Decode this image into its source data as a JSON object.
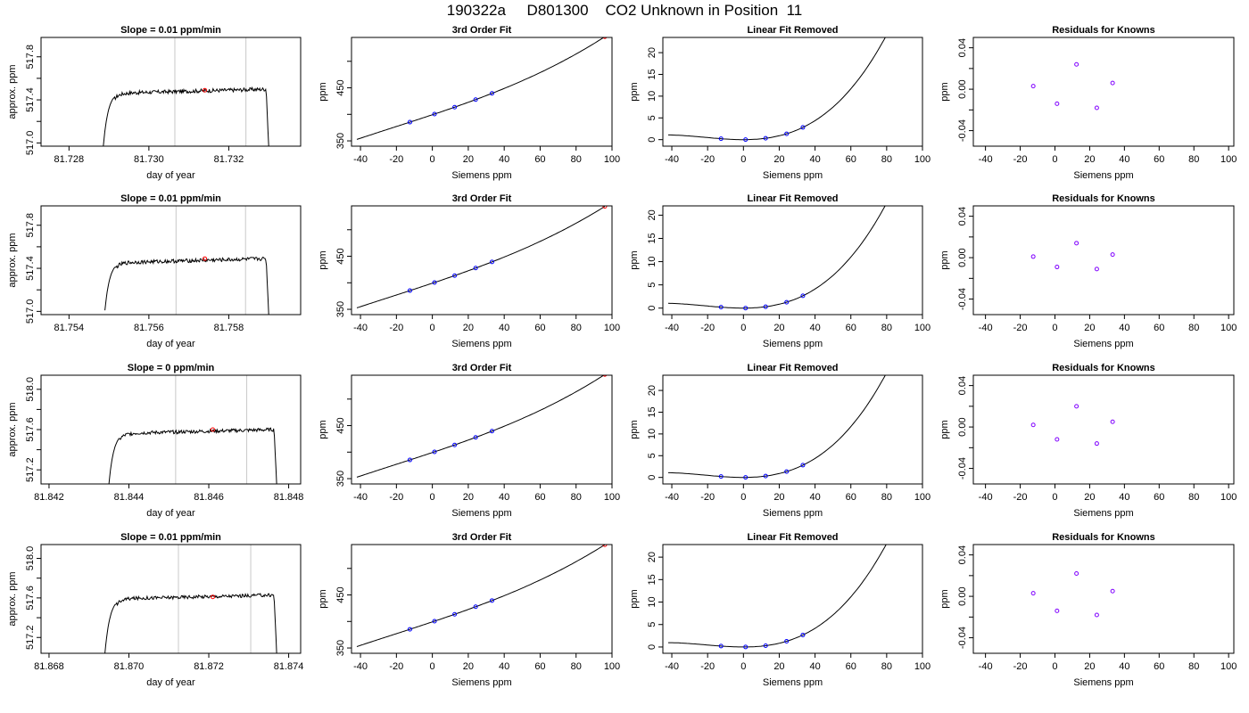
{
  "page_title": "190322a     D801300    CO2 Unknown in Position  11",
  "colors": {
    "axis": "#000000",
    "trace": "#000000",
    "marker_window": "#c8c8c8",
    "unknown_point": "#ff0000",
    "known_point": "#0000ff",
    "residual_point": "#8000ff"
  },
  "chart_data": [
    {
      "type": "line",
      "title": "Slope =  0.01  ppm/min",
      "xlabel": "day of year",
      "ylabel": "approx. ppm",
      "xlim": [
        81.7273,
        81.7338
      ],
      "ylim": [
        516.97,
        517.98
      ],
      "xticks": [
        "81.728",
        "81.730",
        "81.732"
      ],
      "xtick_values": [
        81.728,
        81.73,
        81.732
      ],
      "yticks": [
        "517.0",
        "517.4",
        "517.8"
      ],
      "ytick_values": [
        517.0,
        517.4,
        517.8
      ],
      "yminor_ticks": [
        517.2,
        517.6
      ],
      "window": [
        81.73065,
        81.73243
      ],
      "unknown_point": [
        81.7314,
        517.49
      ],
      "trace_x_range": [
        81.72886,
        81.733
      ],
      "plateau": 517.48,
      "trace_start": 516.97,
      "trace_end": 516.97
    },
    {
      "type": "scatter",
      "title": "3rd Order Fit",
      "xlabel": "Siemens ppm",
      "ylabel": "ppm",
      "xlim": [
        -45,
        100
      ],
      "ylim": [
        340,
        545
      ],
      "xticks": [
        "-40",
        "-20",
        "0",
        "20",
        "40",
        "60",
        "80",
        "100"
      ],
      "xtick_values": [
        -40,
        -20,
        0,
        20,
        40,
        60,
        80,
        100
      ],
      "yticks": [
        "350",
        "450"
      ],
      "ytick_values": [
        350,
        450
      ],
      "yminor_ticks": [
        400,
        500
      ],
      "curve": {
        "x0": -42,
        "x1": 96,
        "a": 399.2,
        "b": 1.131,
        "c": 0.0017,
        "d": 2.58e-05
      },
      "knowns_x": [
        -12.5,
        1.2,
        12.4,
        24.1,
        33.2
      ],
      "unknown_x": 96
    },
    {
      "type": "scatter",
      "title": "Linear Fit Removed",
      "xlabel": "Siemens ppm",
      "ylabel": "ppm",
      "xlim": [
        -45,
        100
      ],
      "ylim": [
        -1.5,
        23.5
      ],
      "xticks": [
        "-40",
        "-20",
        "0",
        "20",
        "40",
        "60",
        "80",
        "100"
      ],
      "xtick_values": [
        -40,
        -20,
        0,
        20,
        40,
        60,
        80,
        100
      ],
      "yticks": [
        "0",
        "5",
        "10",
        "15",
        "20"
      ],
      "ytick_values": [
        0,
        5,
        10,
        15,
        20
      ],
      "curve": {
        "x0": -42,
        "x1": 96,
        "a": 0.0,
        "b": 0.0,
        "c": 0.0017,
        "d": 2.58e-05
      },
      "knowns_x": [
        -12.5,
        1.2,
        12.4,
        24.1,
        33.2
      ],
      "unknown_x": 96
    },
    {
      "type": "scatter",
      "title": "Residuals for Knowns",
      "xlabel": "Siemens ppm",
      "ylabel": "ppm",
      "xlim": [
        -47,
        103
      ],
      "ylim": [
        -0.055,
        0.05
      ],
      "xticks": [
        "-40",
        "-20",
        "0",
        "20",
        "40",
        "60",
        "80",
        "100"
      ],
      "xtick_values": [
        -40,
        -20,
        0,
        20,
        40,
        60,
        80,
        100
      ],
      "yticks": [
        "-0.04",
        "0.00",
        "0.04"
      ],
      "ytick_values": [
        -0.04,
        0.0,
        0.04
      ],
      "yminor_ticks": [
        -0.02,
        0.02
      ],
      "points_x": [
        -12.5,
        1.2,
        12.4,
        24.1,
        33.2
      ],
      "points_y": [
        0.003,
        -0.014,
        0.024,
        -0.018,
        0.006
      ]
    },
    {
      "type": "line",
      "title": "Slope =  0.01  ppm/min",
      "xlabel": "day of year",
      "ylabel": "approx. ppm",
      "xlim": [
        81.7533,
        81.7598
      ],
      "ylim": [
        516.97,
        517.98
      ],
      "xticks": [
        "81.754",
        "81.756",
        "81.758"
      ],
      "xtick_values": [
        81.754,
        81.756,
        81.758
      ],
      "yticks": [
        "517.0",
        "517.4",
        "517.8"
      ],
      "ytick_values": [
        517.0,
        517.4,
        517.8
      ],
      "yminor_ticks": [
        517.2,
        517.6
      ],
      "window": [
        81.75668,
        81.75842
      ],
      "unknown_point": [
        81.7574,
        517.49
      ],
      "trace_x_range": [
        81.7549,
        81.759
      ],
      "plateau": 517.47,
      "trace_start": 517.01,
      "trace_end": 516.97
    },
    {
      "type": "scatter",
      "title": "3rd Order Fit",
      "xlabel": "Siemens ppm",
      "ylabel": "ppm",
      "xlim": [
        -45,
        100
      ],
      "ylim": [
        340,
        545
      ],
      "xticks": [
        "-40",
        "-20",
        "0",
        "20",
        "40",
        "60",
        "80",
        "100"
      ],
      "xtick_values": [
        -40,
        -20,
        0,
        20,
        40,
        60,
        80,
        100
      ],
      "yticks": [
        "350",
        "450"
      ],
      "ytick_values": [
        350,
        450
      ],
      "yminor_ticks": [
        400,
        500
      ],
      "curve": {
        "x0": -42,
        "x1": 96,
        "a": 399.2,
        "b": 1.131,
        "c": 0.0016,
        "d": 2.42e-05
      },
      "knowns_x": [
        -12.5,
        1.2,
        12.4,
        24.1,
        33.2
      ],
      "unknown_x": 96
    },
    {
      "type": "scatter",
      "title": "Linear Fit Removed",
      "xlabel": "Siemens ppm",
      "ylabel": "ppm",
      "xlim": [
        -45,
        100
      ],
      "ylim": [
        -1.4,
        22.0
      ],
      "xticks": [
        "-40",
        "-20",
        "0",
        "20",
        "40",
        "60",
        "80",
        "100"
      ],
      "xtick_values": [
        -40,
        -20,
        0,
        20,
        40,
        60,
        80,
        100
      ],
      "yticks": [
        "0",
        "5",
        "10",
        "15",
        "20"
      ],
      "ytick_values": [
        0,
        5,
        10,
        15,
        20
      ],
      "curve": {
        "x0": -42,
        "x1": 96,
        "a": 0.0,
        "b": 0.0,
        "c": 0.0016,
        "d": 2.42e-05
      },
      "knowns_x": [
        -12.5,
        1.2,
        12.4,
        24.1,
        33.2
      ],
      "unknown_x": 96
    },
    {
      "type": "scatter",
      "title": "Residuals for Knowns",
      "xlabel": "Siemens ppm",
      "ylabel": "ppm",
      "xlim": [
        -47,
        103
      ],
      "ylim": [
        -0.055,
        0.05
      ],
      "xticks": [
        "-40",
        "-20",
        "0",
        "20",
        "40",
        "60",
        "80",
        "100"
      ],
      "xtick_values": [
        -40,
        -20,
        0,
        20,
        40,
        60,
        80,
        100
      ],
      "yticks": [
        "-0.04",
        "0.00",
        "0.04"
      ],
      "ytick_values": [
        -0.04,
        0.0,
        0.04
      ],
      "yminor_ticks": [
        -0.02,
        0.02
      ],
      "points_x": [
        -12.5,
        1.2,
        12.4,
        24.1,
        33.2
      ],
      "points_y": [
        0.001,
        -0.009,
        0.014,
        -0.011,
        0.003
      ]
    },
    {
      "type": "line",
      "title": "Slope =  0  ppm/min",
      "xlabel": "day of year",
      "ylabel": "approx. ppm",
      "xlim": [
        81.8418,
        81.8483
      ],
      "ylim": [
        517.06,
        518.14
      ],
      "xticks": [
        "81.842",
        "81.844",
        "81.846",
        "81.848"
      ],
      "xtick_values": [
        81.842,
        81.844,
        81.846,
        81.848
      ],
      "yticks": [
        "517.2",
        "517.6",
        "518.0"
      ],
      "ytick_values": [
        517.2,
        517.6,
        518.0
      ],
      "yminor_ticks": [
        517.4,
        517.8
      ],
      "window": [
        81.84517,
        81.84695
      ],
      "unknown_point": [
        81.8461,
        517.6
      ],
      "trace_x_range": [
        81.8435,
        81.8477
      ],
      "plateau": 517.58,
      "trace_start": 517.06,
      "trace_end": 517.06
    },
    {
      "type": "scatter",
      "title": "3rd Order Fit",
      "xlabel": "Siemens ppm",
      "ylabel": "ppm",
      "xlim": [
        -45,
        100
      ],
      "ylim": [
        340,
        545
      ],
      "xticks": [
        "-40",
        "-20",
        "0",
        "20",
        "40",
        "60",
        "80",
        "100"
      ],
      "xtick_values": [
        -40,
        -20,
        0,
        20,
        40,
        60,
        80,
        100
      ],
      "yticks": [
        "350",
        "450"
      ],
      "ytick_values": [
        350,
        450
      ],
      "yminor_ticks": [
        400,
        500
      ],
      "curve": {
        "x0": -42,
        "x1": 96,
        "a": 399.2,
        "b": 1.131,
        "c": 0.0017,
        "d": 2.58e-05
      },
      "knowns_x": [
        -12.5,
        1.2,
        12.4,
        24.1,
        33.2
      ],
      "unknown_x": 96
    },
    {
      "type": "scatter",
      "title": "Linear Fit Removed",
      "xlabel": "Siemens ppm",
      "ylabel": "ppm",
      "xlim": [
        -45,
        100
      ],
      "ylim": [
        -1.5,
        23.5
      ],
      "xticks": [
        "-40",
        "-20",
        "0",
        "20",
        "40",
        "60",
        "80",
        "100"
      ],
      "xtick_values": [
        -40,
        -20,
        0,
        20,
        40,
        60,
        80,
        100
      ],
      "yticks": [
        "0",
        "5",
        "10",
        "15",
        "20"
      ],
      "ytick_values": [
        0,
        5,
        10,
        15,
        20
      ],
      "curve": {
        "x0": -42,
        "x1": 96,
        "a": 0.0,
        "b": 0.0,
        "c": 0.0017,
        "d": 2.58e-05
      },
      "knowns_x": [
        -12.5,
        1.2,
        12.4,
        24.1,
        33.2
      ],
      "unknown_x": 96
    },
    {
      "type": "scatter",
      "title": "Residuals for Knowns",
      "xlabel": "Siemens ppm",
      "ylabel": "ppm",
      "xlim": [
        -47,
        103
      ],
      "ylim": [
        -0.055,
        0.05
      ],
      "xticks": [
        "-40",
        "-20",
        "0",
        "20",
        "40",
        "60",
        "80",
        "100"
      ],
      "xtick_values": [
        -40,
        -20,
        0,
        20,
        40,
        60,
        80,
        100
      ],
      "yticks": [
        "-0.04",
        "0.00",
        "0.04"
      ],
      "ytick_values": [
        -0.04,
        0.0,
        0.04
      ],
      "yminor_ticks": [
        -0.02,
        0.02
      ],
      "points_x": [
        -12.5,
        1.2,
        12.4,
        24.1,
        33.2
      ],
      "points_y": [
        0.002,
        -0.012,
        0.02,
        -0.016,
        0.005
      ]
    },
    {
      "type": "line",
      "title": "Slope =  0.01  ppm/min",
      "xlabel": "day of year",
      "ylabel": "approx. ppm",
      "xlim": [
        81.8678,
        81.8743
      ],
      "ylim": [
        517.04,
        518.14
      ],
      "xticks": [
        "81.868",
        "81.870",
        "81.872",
        "81.874"
      ],
      "xtick_values": [
        81.868,
        81.87,
        81.872,
        81.874
      ],
      "yticks": [
        "517.2",
        "517.6",
        "518.0"
      ],
      "ytick_values": [
        517.2,
        517.6,
        518.0
      ],
      "yminor_ticks": [
        517.4,
        517.8
      ],
      "window": [
        81.87124,
        81.87305
      ],
      "unknown_point": [
        81.8721,
        517.61
      ],
      "trace_x_range": [
        81.8694,
        81.8737
      ],
      "plateau": 517.61,
      "trace_start": 517.04,
      "trace_end": 517.04
    },
    {
      "type": "scatter",
      "title": "3rd Order Fit",
      "xlabel": "Siemens ppm",
      "ylabel": "ppm",
      "xlim": [
        -45,
        100
      ],
      "ylim": [
        340,
        545
      ],
      "xticks": [
        "-40",
        "-20",
        "0",
        "20",
        "40",
        "60",
        "80",
        "100"
      ],
      "xtick_values": [
        -40,
        -20,
        0,
        20,
        40,
        60,
        80,
        100
      ],
      "yticks": [
        "350",
        "450"
      ],
      "ytick_values": [
        350,
        450
      ],
      "yminor_ticks": [
        400,
        500
      ],
      "curve": {
        "x0": -42,
        "x1": 96,
        "a": 399.2,
        "b": 1.131,
        "c": 0.0016,
        "d": 2.5e-05
      },
      "knowns_x": [
        -12.5,
        1.2,
        12.4,
        24.1,
        33.2
      ],
      "unknown_x": 96
    },
    {
      "type": "scatter",
      "title": "Linear Fit Removed",
      "xlabel": "Siemens ppm",
      "ylabel": "ppm",
      "xlim": [
        -45,
        100
      ],
      "ylim": [
        -1.4,
        22.8
      ],
      "xticks": [
        "-40",
        "-20",
        "0",
        "20",
        "40",
        "60",
        "80",
        "100"
      ],
      "xtick_values": [
        -40,
        -20,
        0,
        20,
        40,
        60,
        80,
        100
      ],
      "yticks": [
        "0",
        "5",
        "10",
        "15",
        "20"
      ],
      "ytick_values": [
        0,
        5,
        10,
        15,
        20
      ],
      "curve": {
        "x0": -42,
        "x1": 96,
        "a": 0.0,
        "b": 0.0,
        "c": 0.0016,
        "d": 2.5e-05
      },
      "knowns_x": [
        -12.5,
        1.2,
        12.4,
        24.1,
        33.2
      ],
      "unknown_x": 96
    },
    {
      "type": "scatter",
      "title": "Residuals for Knowns",
      "xlabel": "Siemens ppm",
      "ylabel": "ppm",
      "xlim": [
        -47,
        103
      ],
      "ylim": [
        -0.055,
        0.05
      ],
      "xticks": [
        "-40",
        "-20",
        "0",
        "20",
        "40",
        "60",
        "80",
        "100"
      ],
      "xtick_values": [
        -40,
        -20,
        0,
        20,
        40,
        60,
        80,
        100
      ],
      "yticks": [
        "-0.04",
        "0.00",
        "0.04"
      ],
      "ytick_values": [
        -0.04,
        0.0,
        0.04
      ],
      "yminor_ticks": [
        -0.02,
        0.02
      ],
      "points_x": [
        -12.5,
        1.2,
        12.4,
        24.1,
        33.2
      ],
      "points_y": [
        0.003,
        -0.014,
        0.022,
        -0.018,
        0.005
      ]
    }
  ]
}
